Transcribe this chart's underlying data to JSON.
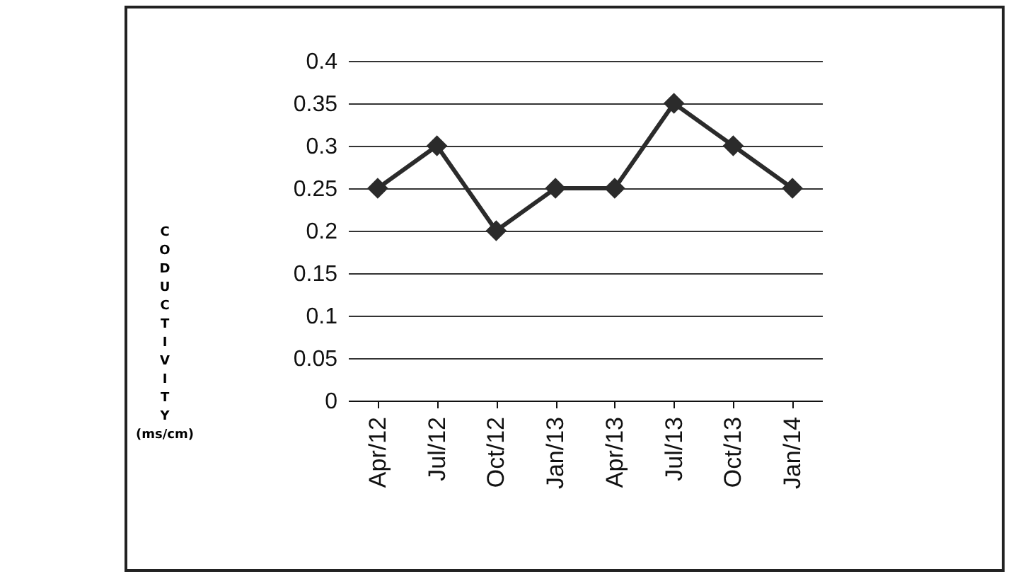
{
  "chart_data": {
    "type": "line",
    "ylabel": "CODUCTIVITY (ms/cm)",
    "categories": [
      "Apr/12",
      "Jul/12",
      "Oct/12",
      "Jan/13",
      "Apr/13",
      "Jul/13",
      "Oct/13",
      "Jan/14"
    ],
    "series": [
      {
        "color": "#2b2b2b",
        "values": [
          0.25,
          0.3,
          0.2,
          0.25,
          0.25,
          0.35,
          0.3,
          0.25
        ]
      }
    ],
    "ylim": [
      0,
      0.4
    ],
    "yticks": [
      0,
      0.05,
      0.1,
      0.15,
      0.2,
      0.25,
      0.3,
      0.35,
      0.4
    ],
    "grid": "y",
    "marker": "diamond",
    "line_style": "solid",
    "legend": false
  }
}
